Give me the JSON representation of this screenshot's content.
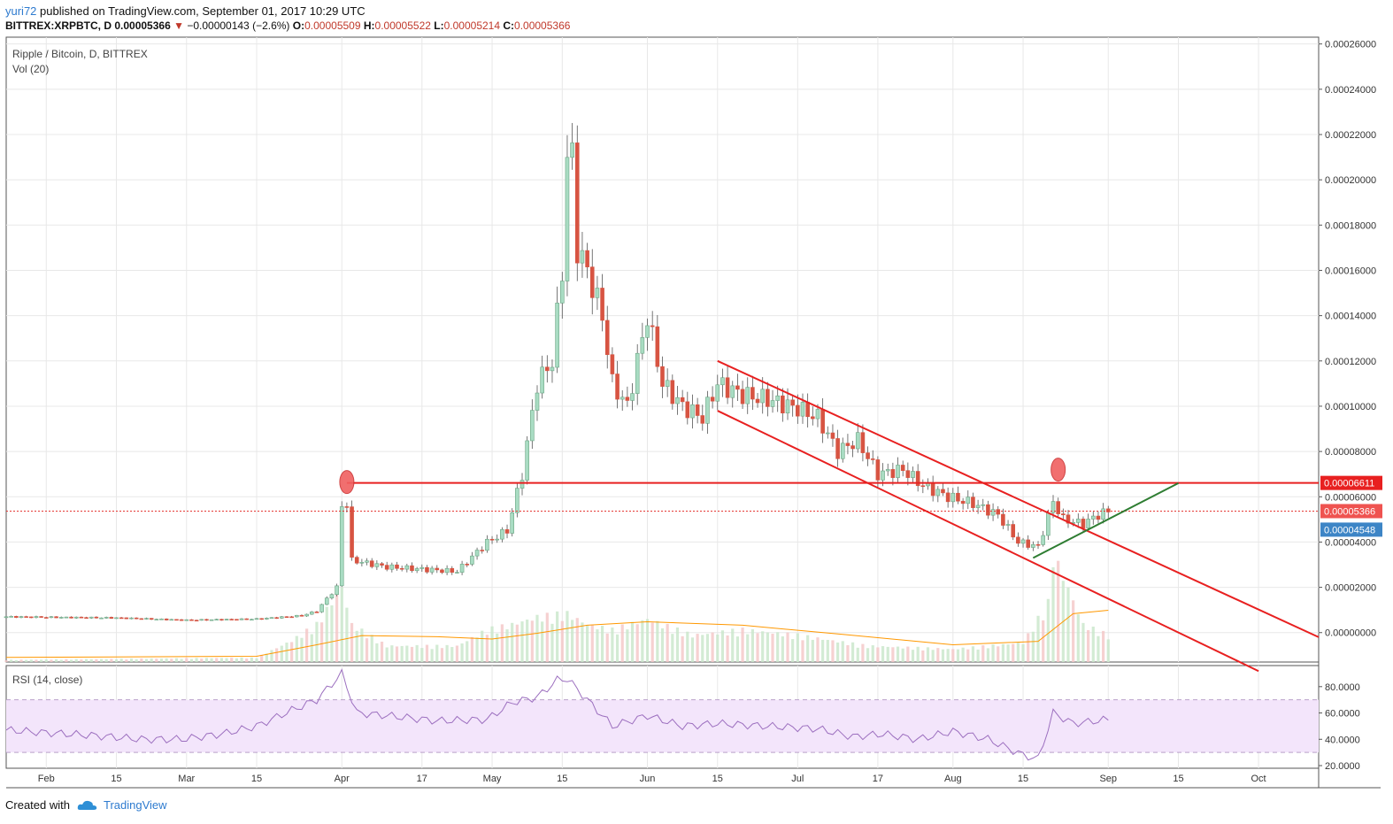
{
  "header": {
    "user": "yuri72",
    "published_text": "published on TradingView.com, September 01, 2017 10:29 UTC",
    "symbol": "BITTREX:XRPBTC, D",
    "last": "0.00005366",
    "change": "−0.00000143 (−2.6%)",
    "o_label": "O:",
    "o_val": "0.00005509",
    "h_label": "H:",
    "h_val": "0.00005522",
    "l_label": "L:",
    "l_val": "0.00005214",
    "c_label": "C:",
    "c_val": "0.00005366"
  },
  "chart_data": {
    "type": "candlestick",
    "title": "Ripple / Bitcoin, D, BITTREX",
    "volume_label": "Vol (20)",
    "indicator_label": "RSI (14, close)",
    "price_axis_ticks": [
      "0.00026000",
      "0.00024000",
      "0.00022000",
      "0.00020000",
      "0.00018000",
      "0.00016000",
      "0.00014000",
      "0.00012000",
      "0.00010000",
      "0.00008000",
      "0.00006000",
      "0.00004000",
      "0.00002000",
      "0.00000000"
    ],
    "price_ylim": [
      -1.3e-05,
      0.000263
    ],
    "rsi_axis_ticks": [
      "80.0000",
      "60.0000",
      "40.0000",
      "20.0000"
    ],
    "rsi_ylim": [
      18,
      96
    ],
    "rsi_band": [
      30,
      70
    ],
    "x_tick_labels": [
      "Feb",
      "15",
      "Mar",
      "15",
      "Apr",
      "17",
      "May",
      "15",
      "Jun",
      "15",
      "Jul",
      "17",
      "Aug",
      "15",
      "Sep",
      "15",
      "Oct"
    ],
    "x_range": [
      "2017-01-24",
      "2017-10-13"
    ],
    "price_labels": {
      "resistance": {
        "value": 6.611e-05,
        "text": "0.00006611",
        "color": "#e82020"
      },
      "last_close": {
        "value": 5.366e-05,
        "text": "0.00005366",
        "color": "#ef5350"
      },
      "other": {
        "value": 4.548e-05,
        "text": "0.00004548",
        "color": "#3d85c6"
      }
    },
    "close_series": [
      [
        "2017-01-24",
        7e-06
      ],
      [
        "2017-02-01",
        6.8e-06
      ],
      [
        "2017-02-15",
        6.5e-06
      ],
      [
        "2017-03-01",
        5.5e-06
      ],
      [
        "2017-03-15",
        6e-06
      ],
      [
        "2017-03-24",
        7.5e-06
      ],
      [
        "2017-03-27",
        9.5e-06
      ],
      [
        "2017-03-29",
        1.5e-05
      ],
      [
        "2017-03-31",
        2e-05
      ],
      [
        "2017-04-01",
        5.6e-05
      ],
      [
        "2017-04-02",
        5.7e-05
      ],
      [
        "2017-04-03",
        3.2e-05
      ],
      [
        "2017-04-10",
        2.9e-05
      ],
      [
        "2017-04-17",
        2.8e-05
      ],
      [
        "2017-04-24",
        2.7e-05
      ],
      [
        "2017-04-30",
        4e-05
      ],
      [
        "2017-05-04",
        4.5e-05
      ],
      [
        "2017-05-07",
        7e-05
      ],
      [
        "2017-05-10",
        0.00011
      ],
      [
        "2017-05-13",
        0.00012
      ],
      [
        "2017-05-15",
        0.00016
      ],
      [
        "2017-05-16",
        0.00021
      ],
      [
        "2017-05-17",
        0.00021
      ],
      [
        "2017-05-18",
        0.00017
      ],
      [
        "2017-05-20",
        0.00016
      ],
      [
        "2017-05-23",
        0.00014
      ],
      [
        "2017-05-25",
        0.00011
      ],
      [
        "2017-05-28",
        0.0001
      ],
      [
        "2017-06-01",
        0.00014
      ],
      [
        "2017-06-04",
        0.00011
      ],
      [
        "2017-06-08",
        0.0001
      ],
      [
        "2017-06-12",
        9.5e-05
      ],
      [
        "2017-06-15",
        0.00011
      ],
      [
        "2017-06-20",
        0.000105
      ],
      [
        "2017-06-25",
        0.000103
      ],
      [
        "2017-07-01",
        9.9e-05
      ],
      [
        "2017-07-05",
        9.5e-05
      ],
      [
        "2017-07-09",
        8e-05
      ],
      [
        "2017-07-13",
        8.5e-05
      ],
      [
        "2017-07-17",
        7e-05
      ],
      [
        "2017-07-22",
        7.2e-05
      ],
      [
        "2017-07-26",
        6.5e-05
      ],
      [
        "2017-07-31",
        6e-05
      ],
      [
        "2017-08-05",
        5.7e-05
      ],
      [
        "2017-08-10",
        5.2e-05
      ],
      [
        "2017-08-14",
        4e-05
      ],
      [
        "2017-08-18",
        3.8e-05
      ],
      [
        "2017-08-21",
        5.8e-05
      ],
      [
        "2017-08-23",
        5e-05
      ],
      [
        "2017-08-27",
        4.8e-05
      ],
      [
        "2017-08-30",
        5.2e-05
      ],
      [
        "2017-09-01",
        5.37e-05
      ]
    ],
    "volume_scale": [
      0,
      1
    ],
    "volume_series": [
      [
        "2017-01-24",
        0.02
      ],
      [
        "2017-03-15",
        0.04
      ],
      [
        "2017-03-22",
        0.2
      ],
      [
        "2017-03-27",
        0.35
      ],
      [
        "2017-04-01",
        0.7
      ],
      [
        "2017-04-03",
        0.35
      ],
      [
        "2017-04-10",
        0.15
      ],
      [
        "2017-04-24",
        0.15
      ],
      [
        "2017-04-30",
        0.3
      ],
      [
        "2017-05-05",
        0.35
      ],
      [
        "2017-05-10",
        0.42
      ],
      [
        "2017-05-16",
        0.45
      ],
      [
        "2017-05-20",
        0.35
      ],
      [
        "2017-05-25",
        0.3
      ],
      [
        "2017-06-01",
        0.4
      ],
      [
        "2017-06-10",
        0.25
      ],
      [
        "2017-06-20",
        0.3
      ],
      [
        "2017-07-01",
        0.25
      ],
      [
        "2017-07-15",
        0.15
      ],
      [
        "2017-08-01",
        0.12
      ],
      [
        "2017-08-15",
        0.18
      ],
      [
        "2017-08-20",
        0.55
      ],
      [
        "2017-08-21",
        1.0
      ],
      [
        "2017-08-23",
        0.8
      ],
      [
        "2017-08-27",
        0.35
      ],
      [
        "2017-09-01",
        0.25
      ]
    ],
    "volume_ma": [
      [
        "2017-01-24",
        0.04
      ],
      [
        "2017-03-15",
        0.05
      ],
      [
        "2017-03-27",
        0.15
      ],
      [
        "2017-04-05",
        0.23
      ],
      [
        "2017-04-20",
        0.22
      ],
      [
        "2017-05-01",
        0.2
      ],
      [
        "2017-05-10",
        0.25
      ],
      [
        "2017-05-20",
        0.32
      ],
      [
        "2017-06-01",
        0.35
      ],
      [
        "2017-06-20",
        0.32
      ],
      [
        "2017-07-10",
        0.24
      ],
      [
        "2017-08-01",
        0.15
      ],
      [
        "2017-08-18",
        0.18
      ],
      [
        "2017-08-25",
        0.42
      ],
      [
        "2017-09-01",
        0.45
      ]
    ],
    "rsi_series": [
      [
        "2017-01-24",
        47
      ],
      [
        "2017-02-01",
        45
      ],
      [
        "2017-02-10",
        43
      ],
      [
        "2017-02-20",
        40
      ],
      [
        "2017-02-28",
        40
      ],
      [
        "2017-03-08",
        44
      ],
      [
        "2017-03-15",
        50
      ],
      [
        "2017-03-22",
        62
      ],
      [
        "2017-03-27",
        70
      ],
      [
        "2017-04-01",
        90
      ],
      [
        "2017-04-04",
        60
      ],
      [
        "2017-04-10",
        58
      ],
      [
        "2017-04-20",
        54
      ],
      [
        "2017-04-30",
        55
      ],
      [
        "2017-05-05",
        68
      ],
      [
        "2017-05-10",
        72
      ],
      [
        "2017-05-14",
        85
      ],
      [
        "2017-05-16",
        86
      ],
      [
        "2017-05-20",
        70
      ],
      [
        "2017-05-25",
        50
      ],
      [
        "2017-06-01",
        58
      ],
      [
        "2017-06-08",
        50
      ],
      [
        "2017-06-15",
        52
      ],
      [
        "2017-06-25",
        50
      ],
      [
        "2017-07-05",
        48
      ],
      [
        "2017-07-12",
        42
      ],
      [
        "2017-07-18",
        44
      ],
      [
        "2017-07-25",
        40
      ],
      [
        "2017-08-01",
        46
      ],
      [
        "2017-08-08",
        40
      ],
      [
        "2017-08-15",
        28
      ],
      [
        "2017-08-18",
        25
      ],
      [
        "2017-08-21",
        60
      ],
      [
        "2017-08-25",
        52
      ],
      [
        "2017-09-01",
        55
      ]
    ],
    "trendlines": [
      {
        "name": "resistance-line",
        "color": "#e82020",
        "from": [
          "2017-04-02",
          6.611e-05
        ],
        "to": [
          "2017-10-13",
          6.611e-05
        ]
      },
      {
        "name": "channel-upper",
        "color": "#e82020",
        "from": [
          "2017-06-15",
          0.00012
        ],
        "to": [
          "2017-10-13",
          -2e-06
        ]
      },
      {
        "name": "channel-lower",
        "color": "#e82020",
        "from": [
          "2017-06-15",
          9.8e-05
        ],
        "to": [
          "2017-10-01",
          -1.7e-05
        ]
      },
      {
        "name": "support-line",
        "color": "#2e7d32",
        "from": [
          "2017-08-17",
          3.3e-05
        ],
        "to": [
          "2017-09-15",
          6.6e-05
        ]
      }
    ],
    "markers": [
      {
        "name": "marker-april-high",
        "date": "2017-04-02",
        "value": 6.65e-05
      },
      {
        "name": "marker-august-high",
        "date": "2017-08-22",
        "value": 7.2e-05
      }
    ]
  },
  "footer": {
    "created_with": "Created with",
    "brand": "TradingView"
  }
}
